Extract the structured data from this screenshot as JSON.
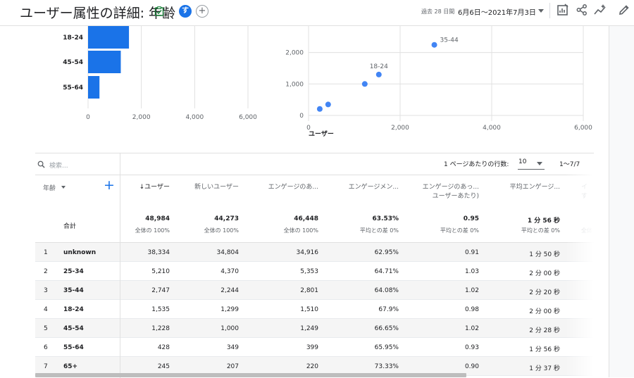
{
  "header": {
    "title": "ユーザー属性の詳細: 年齢",
    "avatar_letter": "す",
    "date_prefix": "過去 28 日間",
    "date_range": "6月6日～2021年7月3日"
  },
  "colors": {
    "accent": "#1a73e8",
    "bar": "#1a73e8",
    "point": "#4285f4"
  },
  "chart_data": [
    {
      "type": "bar",
      "categories": [
        "18-24",
        "45-54",
        "55-64"
      ],
      "values": [
        1535,
        1228,
        428
      ],
      "xticks": [
        "0",
        "2,000",
        "4,000",
        "6,000"
      ],
      "xlim": [
        0,
        6000
      ]
    },
    {
      "type": "scatter",
      "points": [
        {
          "x": 245,
          "y": 207,
          "label": ""
        },
        {
          "x": 428,
          "y": 349,
          "label": ""
        },
        {
          "x": 1228,
          "y": 1000,
          "label": ""
        },
        {
          "x": 1535,
          "y": 1299,
          "label": "18-24"
        },
        {
          "x": 2747,
          "y": 2244,
          "label": "35-44"
        }
      ],
      "xlabel": "ユーザー",
      "xticks": [
        "0",
        "2,000",
        "4,000",
        "6,000"
      ],
      "yticks": [
        "0",
        "1,000",
        "2,000"
      ],
      "xlim": [
        0,
        6000
      ],
      "ylim": [
        0,
        3000
      ]
    }
  ],
  "table": {
    "search_placeholder": "検索...",
    "rows_per_page_label": "1 ページあたりの行数:",
    "rows_per_page": "10",
    "pager": "1～7/7",
    "dimension_header": "年齢",
    "headers": [
      "↓ユーザー",
      "新しいユーザー",
      "エンゲージのあ...",
      "エンゲージメン...",
      "エンゲージのあっ...",
      "平均エンゲージ..."
    ],
    "header_line2": [
      "",
      "",
      "",
      "",
      "ユーザーあたり)",
      ""
    ],
    "extra_header": "イ",
    "extra_header2": "す",
    "total_label": "合計",
    "totals": [
      "48,984",
      "44,273",
      "46,448",
      "63.53%",
      "0.95",
      "1 分 56 秒"
    ],
    "totals_sub": [
      "全体の 100%",
      "全体の 100%",
      "全体の 100%",
      "平均との差 0%",
      "平均との差 0%",
      "平均との差 0%"
    ],
    "extra_total_sub": "全体",
    "rows": [
      {
        "n": "1",
        "label": "unknown",
        "values": [
          "38,334",
          "34,804",
          "34,916",
          "62.95%",
          "0.91",
          "1 分 50 秒"
        ]
      },
      {
        "n": "2",
        "label": "25-34",
        "values": [
          "5,210",
          "4,370",
          "5,353",
          "64.71%",
          "1.03",
          "2 分 00 秒"
        ]
      },
      {
        "n": "3",
        "label": "35-44",
        "values": [
          "2,747",
          "2,244",
          "2,801",
          "64.08%",
          "1.02",
          "2 分 20 秒"
        ]
      },
      {
        "n": "4",
        "label": "18-24",
        "values": [
          "1,535",
          "1,299",
          "1,510",
          "67.9%",
          "0.98",
          "2 分 00 秒"
        ]
      },
      {
        "n": "5",
        "label": "45-54",
        "values": [
          "1,228",
          "1,000",
          "1,249",
          "66.65%",
          "1.02",
          "2 分 28 秒"
        ]
      },
      {
        "n": "6",
        "label": "55-64",
        "values": [
          "428",
          "349",
          "399",
          "65.95%",
          "0.93",
          "1 分 56 秒"
        ]
      },
      {
        "n": "7",
        "label": "65+",
        "values": [
          "245",
          "207",
          "220",
          "73.33%",
          "0.90",
          "1 分 37 秒"
        ]
      }
    ]
  }
}
